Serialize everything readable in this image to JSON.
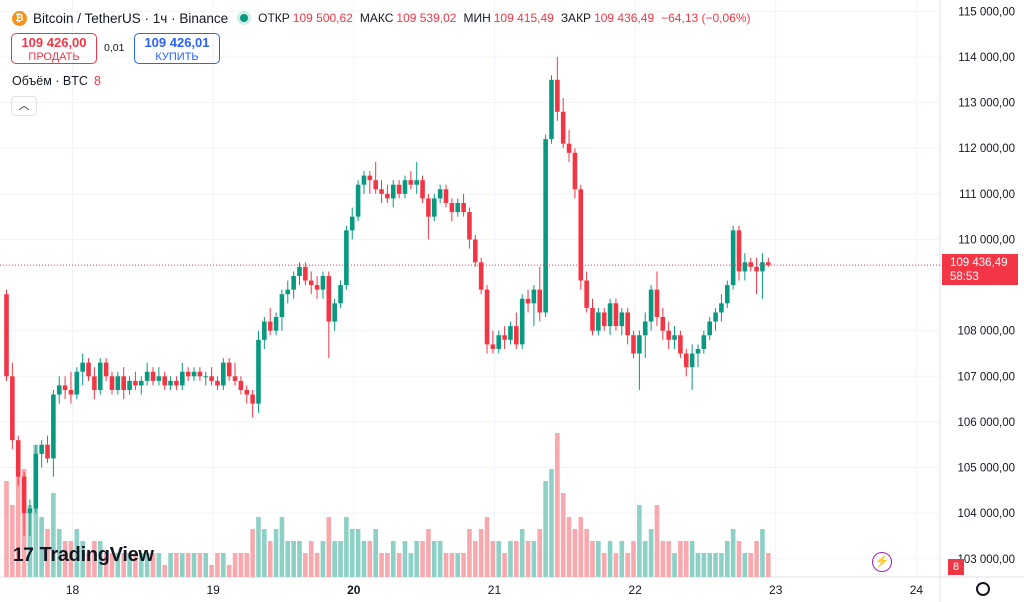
{
  "header": {
    "symbol": "Bitcoin / TetherUS · 1ч · Binance",
    "coin_glyph": "₿",
    "open_label": "ОТКР",
    "open_value": "109 500,62",
    "high_label": "МАКС",
    "high_value": "109 539,02",
    "low_label": "МИН",
    "low_value": "109 415,49",
    "close_label": "ЗАКР",
    "close_value": "109 436,49",
    "change": "−64,13 (−0,06%)"
  },
  "trade": {
    "sell_price": "109 426,00",
    "sell_label": "ПРОДАТЬ",
    "spread": "0,01",
    "buy_price": "109 426,01",
    "buy_label": "КУПИТЬ"
  },
  "volume_legend": {
    "label": "Объём · BTC",
    "value": "8"
  },
  "logo": {
    "text": "TradingView"
  },
  "last_price": {
    "price": "109 436,49",
    "countdown": "58:53"
  },
  "volume_badge": "8",
  "colors": {
    "up": "#089981",
    "down": "#f23645",
    "up_vol": "#8dd0c6",
    "down_vol": "#f7a9ae"
  },
  "icons": {
    "collapse": "chevron-up-icon",
    "bolt": "lightning-icon",
    "settings": "gear-icon"
  },
  "chart_data": {
    "type": "candlestick",
    "ylim": [
      102600,
      115250
    ],
    "y_ticks": [
      115000,
      114000,
      113000,
      112000,
      111000,
      110000,
      108000,
      107000,
      106000,
      105000,
      104000,
      103000
    ],
    "y_tick_labels": [
      "115 000,00",
      "114 000,00",
      "113 000,00",
      "112 000,00",
      "111 000,00",
      "110 000,00",
      "108 000,00",
      "107 000,00",
      "106 000,00",
      "105 000,00",
      "104 000,00",
      "103 000,00"
    ],
    "x_ticks": [
      {
        "label": "18",
        "index": 14
      },
      {
        "label": "19",
        "index": 38
      },
      {
        "label": "20",
        "index": 62,
        "bold": true
      },
      {
        "label": "21",
        "index": 86
      },
      {
        "label": "22",
        "index": 110
      },
      {
        "label": "23",
        "index": 134
      },
      {
        "label": "24",
        "index": 158
      }
    ],
    "last_price": 109436.49,
    "candles": [
      [
        108800,
        108900,
        106900,
        107000
      ],
      [
        107000,
        107300,
        105400,
        105600
      ],
      [
        105600,
        105700,
        104600,
        104800
      ],
      [
        104800,
        104900,
        103500,
        104000
      ],
      [
        104000,
        104300,
        103500,
        104100
      ],
      [
        104100,
        105500,
        104000,
        105300
      ],
      [
        105300,
        105600,
        105000,
        105500
      ],
      [
        105500,
        105700,
        105100,
        105200
      ],
      [
        105200,
        106700,
        104800,
        106600
      ],
      [
        106600,
        107000,
        106400,
        106800
      ],
      [
        106800,
        107000,
        106500,
        106700
      ],
      [
        106700,
        107100,
        106400,
        106600
      ],
      [
        106600,
        107200,
        106500,
        107100
      ],
      [
        107100,
        107500,
        106800,
        107300
      ],
      [
        107300,
        107400,
        106900,
        107000
      ],
      [
        107000,
        107200,
        106500,
        106700
      ],
      [
        106700,
        107400,
        106600,
        107300
      ],
      [
        107300,
        107400,
        106900,
        107000
      ],
      [
        107000,
        107100,
        106600,
        106700
      ],
      [
        106700,
        107100,
        106600,
        107000
      ],
      [
        107000,
        107200,
        106500,
        106700
      ],
      [
        106700,
        107000,
        106600,
        106900
      ],
      [
        106900,
        107100,
        106700,
        106800
      ],
      [
        106800,
        107000,
        106600,
        106900
      ],
      [
        106900,
        107300,
        106800,
        107100
      ],
      [
        107100,
        107200,
        106800,
        106900
      ],
      [
        106900,
        107200,
        106800,
        107000
      ],
      [
        107000,
        107100,
        106700,
        106800
      ],
      [
        106800,
        107000,
        106700,
        106900
      ],
      [
        106900,
        107000,
        106700,
        106800
      ],
      [
        106800,
        107300,
        106700,
        107100
      ],
      [
        107100,
        107200,
        106900,
        107000
      ],
      [
        107000,
        107200,
        106900,
        107100
      ],
      [
        107100,
        107200,
        106900,
        107000
      ],
      [
        107000,
        107100,
        106800,
        107000
      ],
      [
        107000,
        107200,
        106800,
        106900
      ],
      [
        106900,
        107000,
        106700,
        106800
      ],
      [
        106800,
        107400,
        106700,
        107300
      ],
      [
        107300,
        107400,
        106900,
        107000
      ],
      [
        107000,
        107300,
        106800,
        106900
      ],
      [
        106900,
        107000,
        106600,
        106700
      ],
      [
        106700,
        106800,
        106400,
        106600
      ],
      [
        106600,
        106700,
        106100,
        106400
      ],
      [
        106400,
        108000,
        106200,
        107800
      ],
      [
        107800,
        108300,
        107600,
        108200
      ],
      [
        108200,
        108500,
        107900,
        108000
      ],
      [
        108000,
        108400,
        107900,
        108300
      ],
      [
        108300,
        108900,
        108000,
        108800
      ],
      [
        108800,
        109100,
        108600,
        108900
      ],
      [
        108900,
        109300,
        108700,
        109200
      ],
      [
        109200,
        109500,
        109000,
        109400
      ],
      [
        109400,
        109500,
        109000,
        109100
      ],
      [
        109100,
        109300,
        108800,
        109000
      ],
      [
        109000,
        109200,
        108700,
        108900
      ],
      [
        108900,
        109300,
        108700,
        109200
      ],
      [
        109200,
        109300,
        107400,
        108200
      ],
      [
        108200,
        108700,
        108000,
        108600
      ],
      [
        108600,
        109100,
        108500,
        109000
      ],
      [
        109000,
        110300,
        108900,
        110200
      ],
      [
        110200,
        110700,
        110000,
        110500
      ],
      [
        110500,
        111300,
        110400,
        111200
      ],
      [
        111200,
        111500,
        111000,
        111400
      ],
      [
        111400,
        111500,
        111000,
        111300
      ],
      [
        111300,
        111700,
        111000,
        111100
      ],
      [
        111100,
        111300,
        110800,
        111000
      ],
      [
        111000,
        111200,
        110800,
        110900
      ],
      [
        110900,
        111300,
        110700,
        111200
      ],
      [
        111200,
        111300,
        110900,
        111000
      ],
      [
        111000,
        111400,
        110900,
        111300
      ],
      [
        111300,
        111500,
        111100,
        111200
      ],
      [
        111200,
        111700,
        111000,
        111300
      ],
      [
        111300,
        111400,
        110800,
        110900
      ],
      [
        110900,
        111000,
        110000,
        110500
      ],
      [
        110500,
        111000,
        110400,
        110900
      ],
      [
        110900,
        111200,
        110800,
        111100
      ],
      [
        111100,
        111200,
        110700,
        110800
      ],
      [
        110800,
        110900,
        110400,
        110600
      ],
      [
        110600,
        110900,
        110500,
        110800
      ],
      [
        110800,
        111000,
        110500,
        110600
      ],
      [
        110600,
        110700,
        109800,
        110000
      ],
      [
        110000,
        110100,
        109400,
        109500
      ],
      [
        109500,
        109600,
        108800,
        108900
      ],
      [
        108900,
        109000,
        107500,
        107700
      ],
      [
        107700,
        108000,
        107500,
        107600
      ],
      [
        107600,
        108000,
        107500,
        107900
      ],
      [
        107900,
        108100,
        107600,
        107800
      ],
      [
        107800,
        108200,
        107700,
        108100
      ],
      [
        108100,
        108400,
        107600,
        107700
      ],
      [
        107700,
        108800,
        107600,
        108700
      ],
      [
        108700,
        108900,
        108400,
        108600
      ],
      [
        108600,
        109000,
        108100,
        108900
      ],
      [
        108900,
        109400,
        108200,
        108400
      ],
      [
        108400,
        112300,
        108300,
        112200
      ],
      [
        112200,
        113600,
        112100,
        113500
      ],
      [
        113500,
        114000,
        112600,
        112800
      ],
      [
        112800,
        113100,
        112000,
        112100
      ],
      [
        112100,
        112400,
        111700,
        111900
      ],
      [
        111900,
        112000,
        110900,
        111100
      ],
      [
        111100,
        111200,
        108900,
        109100
      ],
      [
        109100,
        109300,
        108400,
        108500
      ],
      [
        108500,
        108700,
        107900,
        108000
      ],
      [
        108000,
        108500,
        107900,
        108400
      ],
      [
        108400,
        108500,
        108000,
        108100
      ],
      [
        108100,
        108700,
        107900,
        108600
      ],
      [
        108600,
        108700,
        108000,
        108100
      ],
      [
        108100,
        108500,
        107900,
        108400
      ],
      [
        108400,
        108500,
        107700,
        107900
      ],
      [
        107900,
        108000,
        107400,
        107500
      ],
      [
        107500,
        108000,
        106700,
        107900
      ],
      [
        107900,
        108400,
        107400,
        108200
      ],
      [
        108200,
        109000,
        108000,
        108900
      ],
      [
        108900,
        109300,
        108100,
        108300
      ],
      [
        108300,
        108500,
        107800,
        108000
      ],
      [
        108000,
        108200,
        107600,
        107800
      ],
      [
        107800,
        108100,
        107600,
        107900
      ],
      [
        107900,
        108000,
        107400,
        107500
      ],
      [
        107500,
        107600,
        107000,
        107200
      ],
      [
        107200,
        107700,
        106700,
        107500
      ],
      [
        107500,
        107700,
        107200,
        107600
      ],
      [
        107600,
        108000,
        107500,
        107900
      ],
      [
        107900,
        108300,
        107800,
        108200
      ],
      [
        108200,
        108500,
        108000,
        108400
      ],
      [
        108400,
        108800,
        108200,
        108600
      ],
      [
        108600,
        109100,
        108500,
        109000
      ],
      [
        109000,
        110300,
        108900,
        110200
      ],
      [
        110200,
        110300,
        109100,
        109300
      ],
      [
        109300,
        109700,
        109100,
        109500
      ],
      [
        109500,
        109600,
        109300,
        109400
      ],
      [
        109400,
        109600,
        108800,
        109300
      ],
      [
        109300,
        109700,
        108700,
        109500
      ],
      [
        109500,
        109600,
        109400,
        109436
      ]
    ],
    "volumes": [
      [
        8,
        "d"
      ],
      [
        6,
        "d"
      ],
      [
        11,
        "d"
      ],
      [
        9,
        "d"
      ],
      [
        6,
        "u"
      ],
      [
        11,
        "u"
      ],
      [
        5,
        "u"
      ],
      [
        4,
        "d"
      ],
      [
        7,
        "u"
      ],
      [
        4,
        "u"
      ],
      [
        3,
        "d"
      ],
      [
        3,
        "d"
      ],
      [
        4,
        "u"
      ],
      [
        3,
        "u"
      ],
      [
        2,
        "d"
      ],
      [
        3,
        "d"
      ],
      [
        3,
        "u"
      ],
      [
        2,
        "d"
      ],
      [
        2,
        "d"
      ],
      [
        2,
        "u"
      ],
      [
        2,
        "d"
      ],
      [
        2,
        "u"
      ],
      [
        2,
        "d"
      ],
      [
        2,
        "u"
      ],
      [
        2,
        "u"
      ],
      [
        2,
        "d"
      ],
      [
        2,
        "u"
      ],
      [
        1,
        "d"
      ],
      [
        2,
        "u"
      ],
      [
        2,
        "d"
      ],
      [
        2,
        "u"
      ],
      [
        2,
        "d"
      ],
      [
        2,
        "u"
      ],
      [
        2,
        "d"
      ],
      [
        2,
        "u"
      ],
      [
        1,
        "d"
      ],
      [
        2,
        "d"
      ],
      [
        2,
        "u"
      ],
      [
        1,
        "d"
      ],
      [
        2,
        "d"
      ],
      [
        2,
        "d"
      ],
      [
        2,
        "d"
      ],
      [
        4,
        "d"
      ],
      [
        5,
        "u"
      ],
      [
        4,
        "u"
      ],
      [
        3,
        "d"
      ],
      [
        4,
        "u"
      ],
      [
        5,
        "u"
      ],
      [
        3,
        "u"
      ],
      [
        3,
        "u"
      ],
      [
        3,
        "u"
      ],
      [
        2,
        "d"
      ],
      [
        3,
        "d"
      ],
      [
        2,
        "d"
      ],
      [
        3,
        "u"
      ],
      [
        5,
        "d"
      ],
      [
        3,
        "u"
      ],
      [
        3,
        "u"
      ],
      [
        5,
        "u"
      ],
      [
        4,
        "u"
      ],
      [
        4,
        "u"
      ],
      [
        3,
        "u"
      ],
      [
        3,
        "d"
      ],
      [
        4,
        "u"
      ],
      [
        2,
        "d"
      ],
      [
        2,
        "d"
      ],
      [
        3,
        "u"
      ],
      [
        2,
        "d"
      ],
      [
        3,
        "u"
      ],
      [
        2,
        "u"
      ],
      [
        3,
        "u"
      ],
      [
        3,
        "d"
      ],
      [
        4,
        "d"
      ],
      [
        3,
        "u"
      ],
      [
        3,
        "u"
      ],
      [
        2,
        "d"
      ],
      [
        2,
        "d"
      ],
      [
        2,
        "u"
      ],
      [
        2,
        "d"
      ],
      [
        4,
        "d"
      ],
      [
        3,
        "d"
      ],
      [
        4,
        "d"
      ],
      [
        5,
        "d"
      ],
      [
        3,
        "d"
      ],
      [
        3,
        "u"
      ],
      [
        2,
        "d"
      ],
      [
        3,
        "u"
      ],
      [
        3,
        "d"
      ],
      [
        4,
        "u"
      ],
      [
        3,
        "d"
      ],
      [
        3,
        "u"
      ],
      [
        4,
        "d"
      ],
      [
        8,
        "u"
      ],
      [
        9,
        "u"
      ],
      [
        12,
        "d"
      ],
      [
        7,
        "d"
      ],
      [
        5,
        "d"
      ],
      [
        4,
        "d"
      ],
      [
        5,
        "d"
      ],
      [
        4,
        "d"
      ],
      [
        3,
        "d"
      ],
      [
        3,
        "u"
      ],
      [
        2,
        "d"
      ],
      [
        3,
        "u"
      ],
      [
        2,
        "d"
      ],
      [
        3,
        "u"
      ],
      [
        2,
        "d"
      ],
      [
        3,
        "d"
      ],
      [
        6,
        "u"
      ],
      [
        3,
        "u"
      ],
      [
        4,
        "u"
      ],
      [
        6,
        "d"
      ],
      [
        3,
        "d"
      ],
      [
        3,
        "d"
      ],
      [
        2,
        "u"
      ],
      [
        3,
        "d"
      ],
      [
        3,
        "d"
      ],
      [
        3,
        "u"
      ],
      [
        2,
        "u"
      ],
      [
        2,
        "u"
      ],
      [
        2,
        "u"
      ],
      [
        2,
        "u"
      ],
      [
        2,
        "u"
      ],
      [
        3,
        "u"
      ],
      [
        4,
        "u"
      ],
      [
        3,
        "d"
      ],
      [
        2,
        "u"
      ],
      [
        2,
        "d"
      ],
      [
        3,
        "d"
      ],
      [
        4,
        "u"
      ],
      [
        2,
        "d"
      ]
    ]
  }
}
